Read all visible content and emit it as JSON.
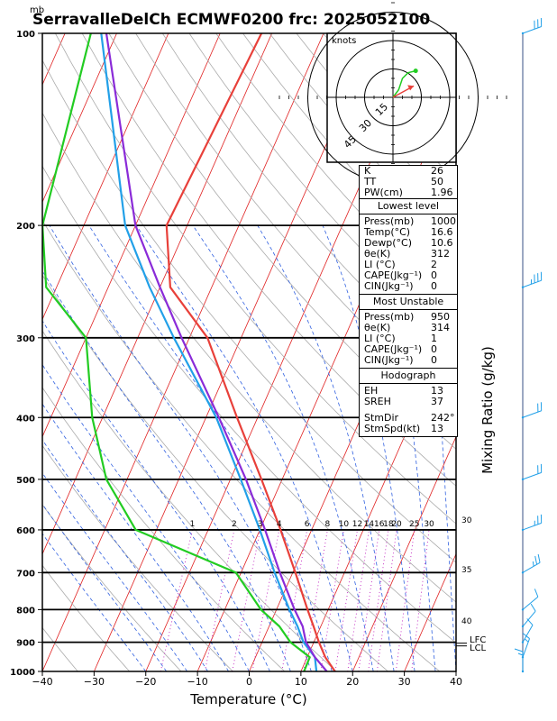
{
  "title": "SerravalleDelCh ECMWF0200 frc: 2025052100",
  "pressure_unit": "mb",
  "xlabel": "Temperature (°C)",
  "right_label": "Mixing Ratio (g/kg)",
  "hodograph": {
    "unit_label": "knots",
    "ring_labels": [
      "15",
      "30",
      "45"
    ]
  },
  "indices": [
    {
      "label": "K",
      "value": "26"
    },
    {
      "label": "TT",
      "value": "50"
    },
    {
      "label": "PW(cm)",
      "value": "1.96"
    }
  ],
  "lowest_level": {
    "title": "Lowest level",
    "rows": [
      {
        "label": "Press(mb)",
        "value": "1000"
      },
      {
        "label": "Temp(°C)",
        "value": "16.6"
      },
      {
        "label": "Dewp(°C)",
        "value": "10.6"
      },
      {
        "label": "θe(K)",
        "value": "312"
      },
      {
        "label": "LI (°C)",
        "value": "2"
      },
      {
        "label": "CAPE(Jkg⁻¹)",
        "value": "0"
      },
      {
        "label": "CIN(Jkg⁻¹)",
        "value": "0"
      }
    ]
  },
  "most_unstable": {
    "title": "Most Unstable",
    "rows": [
      {
        "label": "Press(mb)",
        "value": "950"
      },
      {
        "label": "θe(K)",
        "value": "314"
      },
      {
        "label": "LI (°C)",
        "value": "1"
      },
      {
        "label": "CAPE(Jkg⁻¹)",
        "value": "0"
      },
      {
        "label": "CIN(Jkg⁻¹)",
        "value": "0"
      }
    ]
  },
  "hodo_params": {
    "title": "Hodograph",
    "rows": [
      {
        "label": "EH",
        "value": "13"
      },
      {
        "label": "SREH",
        "value": "37"
      },
      {
        "label": "StmDir",
        "value": "242°"
      },
      {
        "label": "StmSpd(kt)",
        "value": "13"
      }
    ]
  },
  "lcl_labels": [
    "LFC",
    "LCL"
  ],
  "colors": {
    "temperature": "#e8403a",
    "dewpoint": "#22cc22",
    "wetbulb": "#22a0e8",
    "parcel": "#8a2bd8",
    "isotherm": "#e02020",
    "dry_adiabat": "#aaaaaa",
    "moist_adiabat": "#3060e0",
    "mixing_ratio": "#c020c0"
  },
  "chart_data": {
    "type": "line",
    "chart_kind": "skew-T log-P",
    "xlim": [
      -40,
      40
    ],
    "ylim": [
      1000,
      100
    ],
    "y_scale": "log",
    "x_ticks": [
      -40,
      -30,
      -20,
      -10,
      0,
      10,
      20,
      30,
      40
    ],
    "y_ticks": [
      100,
      200,
      300,
      400,
      500,
      600,
      700,
      800,
      900,
      1000
    ],
    "mixing_ratio_labels": [
      "1",
      "2",
      "3",
      "4",
      "6",
      "8",
      "10",
      "12",
      "14",
      "16",
      "18",
      "20",
      "25",
      "30"
    ],
    "mixing_ratio_values": [
      1,
      2,
      3,
      4,
      6,
      8,
      10,
      12,
      14,
      16,
      18,
      20,
      25,
      30
    ],
    "adiabat_labels": [
      "30",
      "35",
      "40"
    ],
    "series": [
      {
        "name": "",
        "key": "temperature",
        "p": [
          1000,
          950,
          900,
          850,
          800,
          700,
          600,
          500,
          400,
          300,
          250,
          200,
          100
        ],
        "t": [
          16.6,
          13.5,
          11.0,
          8.6,
          6.0,
          0.5,
          -6.0,
          -14.0,
          -24.0,
          -36.5,
          -48.0,
          -54.0,
          -52.0
        ]
      },
      {
        "name": "",
        "key": "dewpoint",
        "p": [
          1000,
          950,
          900,
          850,
          800,
          700,
          600,
          500,
          400,
          300,
          250,
          200,
          100
        ],
        "t": [
          10.6,
          10.5,
          5.5,
          2.0,
          -3.0,
          -11.0,
          -34.0,
          -44.0,
          -52.0,
          -60.0,
          -72.0,
          -78.0,
          -85.0
        ]
      },
      {
        "name": "",
        "key": "wetbulb",
        "p": [
          1000,
          950,
          900,
          850,
          800,
          700,
          600,
          500,
          400,
          300,
          250,
          200,
          100
        ],
        "t": [
          13.0,
          11.5,
          8.0,
          5.5,
          2.5,
          -3.5,
          -10.0,
          -18.0,
          -28.0,
          -43.0,
          -52.0,
          -62.0,
          -83.0
        ]
      },
      {
        "name": "",
        "key": "parcel",
        "p": [
          1000,
          950,
          900,
          850,
          800,
          700,
          600,
          500,
          400,
          300,
          250,
          200,
          100
        ],
        "t": [
          15.0,
          11.5,
          8.5,
          6.5,
          3.5,
          -2.5,
          -9.0,
          -17.0,
          -27.5,
          -41.5,
          -50.0,
          -60.0,
          -82.0
        ]
      }
    ],
    "hodograph_points": [
      [
        0,
        0
      ],
      [
        3,
        4
      ],
      [
        5,
        10
      ],
      [
        8,
        13
      ],
      [
        12,
        14
      ]
    ],
    "storm_motion": [
      11,
      6
    ],
    "wind_barbs": [
      {
        "p": 100,
        "dir": 250,
        "spd": 30
      },
      {
        "p": 250,
        "dir": 250,
        "spd": 25
      },
      {
        "p": 400,
        "dir": 250,
        "spd": 20
      },
      {
        "p": 500,
        "dir": 250,
        "spd": 20
      },
      {
        "p": 600,
        "dir": 250,
        "spd": 15
      },
      {
        "p": 700,
        "dir": 240,
        "spd": 15
      },
      {
        "p": 800,
        "dir": 230,
        "spd": 10
      },
      {
        "p": 850,
        "dir": 220,
        "spd": 10
      },
      {
        "p": 900,
        "dir": 210,
        "spd": 10
      },
      {
        "p": 950,
        "dir": 200,
        "spd": 5
      },
      {
        "p": 1000,
        "dir": 180,
        "spd": 5
      }
    ]
  }
}
